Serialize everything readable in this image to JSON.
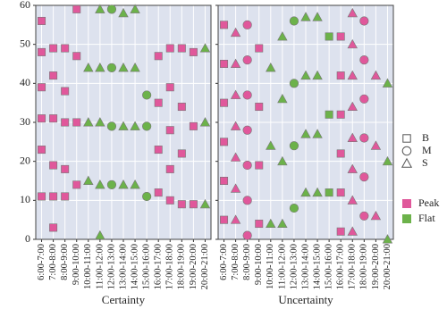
{
  "chart_data": [
    {
      "type": "scatter",
      "xlabel": "Certainty",
      "categories": [
        "6:00-7:00",
        "7:00-8:00",
        "8:00-9:00",
        "9:00-10:00",
        "10:00-11:00",
        "11:00-12:00",
        "12:00-13:00",
        "13:00-14:00",
        "14:00-15:00",
        "15:00-16:00",
        "16:00-17:00",
        "17:00-18:00",
        "18:00-19:00",
        "19:00-20:00",
        "20:00-21:00"
      ],
      "ylim": [
        0,
        60
      ],
      "yticks": [
        0,
        10,
        20,
        30,
        40,
        50,
        60
      ],
      "show_ytick_labels": true,
      "grid": true,
      "series": [
        {
          "shape": "square",
          "color": "#e0589b",
          "x": [
            "6:00-7:00",
            "6:00-7:00",
            "6:00-7:00",
            "6:00-7:00",
            "6:00-7:00",
            "6:00-7:00",
            "7:00-8:00",
            "7:00-8:00",
            "7:00-8:00",
            "7:00-8:00",
            "7:00-8:00",
            "7:00-8:00",
            "8:00-9:00",
            "8:00-9:00",
            "8:00-9:00",
            "8:00-9:00",
            "8:00-9:00",
            "9:00-10:00",
            "9:00-10:00",
            "9:00-10:00",
            "9:00-10:00",
            "16:00-17:00",
            "16:00-17:00",
            "16:00-17:00",
            "16:00-17:00",
            "17:00-18:00",
            "17:00-18:00",
            "17:00-18:00",
            "17:00-18:00",
            "17:00-18:00",
            "18:00-19:00",
            "18:00-19:00",
            "18:00-19:00",
            "18:00-19:00",
            "19:00-20:00",
            "19:00-20:00",
            "19:00-20:00"
          ],
          "y": [
            56,
            48,
            39,
            31,
            23,
            11,
            49,
            42,
            31,
            19,
            11,
            3,
            49,
            38,
            30,
            18,
            11,
            59,
            47,
            30,
            14,
            47,
            35,
            23,
            12,
            49,
            39,
            28,
            18,
            10,
            49,
            34,
            22,
            9,
            48,
            29,
            9
          ]
        },
        {
          "shape": "triangle",
          "color": "#6cb24a",
          "x": [
            "10:00-11:00",
            "10:00-11:00",
            "10:00-11:00",
            "11:00-12:00",
            "11:00-12:00",
            "11:00-12:00",
            "11:00-12:00",
            "11:00-12:00",
            "13:00-14:00",
            "13:00-14:00",
            "13:00-14:00",
            "13:00-14:00",
            "14:00-15:00",
            "14:00-15:00",
            "14:00-15:00",
            "14:00-15:00",
            "20:00-21:00",
            "20:00-21:00",
            "20:00-21:00"
          ],
          "y": [
            44,
            30,
            15,
            59,
            44,
            30,
            14,
            1,
            58,
            44,
            29,
            14,
            59,
            44,
            29,
            14,
            49,
            30,
            9
          ]
        },
        {
          "shape": "circle",
          "color": "#6cb24a",
          "x": [
            "12:00-13:00",
            "12:00-13:00",
            "12:00-13:00",
            "12:00-13:00",
            "15:00-16:00",
            "15:00-16:00",
            "15:00-16:00"
          ],
          "y": [
            59,
            44,
            29,
            14,
            37,
            29,
            11
          ]
        }
      ]
    },
    {
      "type": "scatter",
      "xlabel": "Uncertainty",
      "categories": [
        "6:00-7:00",
        "7:00-8:00",
        "8:00-9:00",
        "9:00-10:00",
        "10:00-11:00",
        "11:00-12:00",
        "12:00-13:00",
        "13:00-14:00",
        "14:00-15:00",
        "15:00-16:00",
        "16:00-17:00",
        "17:00-18:00",
        "18:00-19:00",
        "19:00-20:00",
        "20:00-21:00"
      ],
      "ylim": [
        0,
        60
      ],
      "yticks": [
        0,
        10,
        20,
        30,
        40,
        50,
        60
      ],
      "show_ytick_labels": false,
      "grid": true,
      "series": [
        {
          "shape": "square",
          "color": "#e0589b",
          "x": [
            "6:00-7:00",
            "6:00-7:00",
            "6:00-7:00",
            "6:00-7:00",
            "6:00-7:00",
            "6:00-7:00",
            "9:00-10:00",
            "9:00-10:00",
            "9:00-10:00",
            "9:00-10:00",
            "16:00-17:00",
            "16:00-17:00",
            "16:00-17:00",
            "16:00-17:00",
            "16:00-17:00",
            "16:00-17:00"
          ],
          "y": [
            55,
            45,
            35,
            25,
            15,
            5,
            49,
            34,
            19,
            4,
            52,
            42,
            32,
            22,
            12,
            2
          ]
        },
        {
          "shape": "triangle",
          "color": "#e0589b",
          "x": [
            "7:00-8:00",
            "7:00-8:00",
            "7:00-8:00",
            "7:00-8:00",
            "7:00-8:00",
            "7:00-8:00",
            "7:00-8:00",
            "17:00-18:00",
            "17:00-18:00",
            "17:00-18:00",
            "17:00-18:00",
            "17:00-18:00",
            "17:00-18:00",
            "17:00-18:00",
            "17:00-18:00",
            "19:00-20:00",
            "19:00-20:00",
            "19:00-20:00"
          ],
          "y": [
            53,
            45,
            37,
            29,
            21,
            13,
            5,
            58,
            50,
            42,
            34,
            26,
            18,
            10,
            2,
            42,
            24,
            6
          ]
        },
        {
          "shape": "circle",
          "color": "#e0589b",
          "x": [
            "8:00-9:00",
            "8:00-9:00",
            "8:00-9:00",
            "8:00-9:00",
            "8:00-9:00",
            "8:00-9:00",
            "8:00-9:00",
            "18:00-19:00",
            "18:00-19:00",
            "18:00-19:00",
            "18:00-19:00",
            "18:00-19:00",
            "18:00-19:00"
          ],
          "y": [
            55,
            46,
            37,
            28,
            19,
            10,
            1,
            56,
            46,
            36,
            26,
            16,
            6
          ]
        },
        {
          "shape": "triangle",
          "color": "#6cb24a",
          "x": [
            "10:00-11:00",
            "10:00-11:00",
            "10:00-11:00",
            "11:00-12:00",
            "11:00-12:00",
            "11:00-12:00",
            "11:00-12:00",
            "13:00-14:00",
            "13:00-14:00",
            "13:00-14:00",
            "13:00-14:00",
            "14:00-15:00",
            "14:00-15:00",
            "14:00-15:00",
            "14:00-15:00",
            "20:00-21:00",
            "20:00-21:00",
            "20:00-21:00"
          ],
          "y": [
            44,
            24,
            4,
            52,
            36,
            20,
            4,
            57,
            42,
            27,
            12,
            57,
            42,
            27,
            12,
            40,
            20,
            0
          ]
        },
        {
          "shape": "circle",
          "color": "#6cb24a",
          "x": [
            "12:00-13:00",
            "12:00-13:00",
            "12:00-13:00",
            "12:00-13:00"
          ],
          "y": [
            56,
            40,
            24,
            8
          ]
        },
        {
          "shape": "square",
          "color": "#6cb24a",
          "x": [
            "15:00-16:00",
            "15:00-16:00",
            "15:00-16:00"
          ],
          "y": [
            52,
            32,
            12
          ]
        }
      ]
    }
  ],
  "legend": {
    "shapes": [
      {
        "label": "B",
        "shape": "square"
      },
      {
        "label": "M",
        "shape": "circle"
      },
      {
        "label": "S",
        "shape": "triangle"
      }
    ],
    "colors": [
      {
        "label": "Peak",
        "color": "#e0589b"
      },
      {
        "label": "Flat",
        "color": "#6cb24a"
      }
    ]
  }
}
